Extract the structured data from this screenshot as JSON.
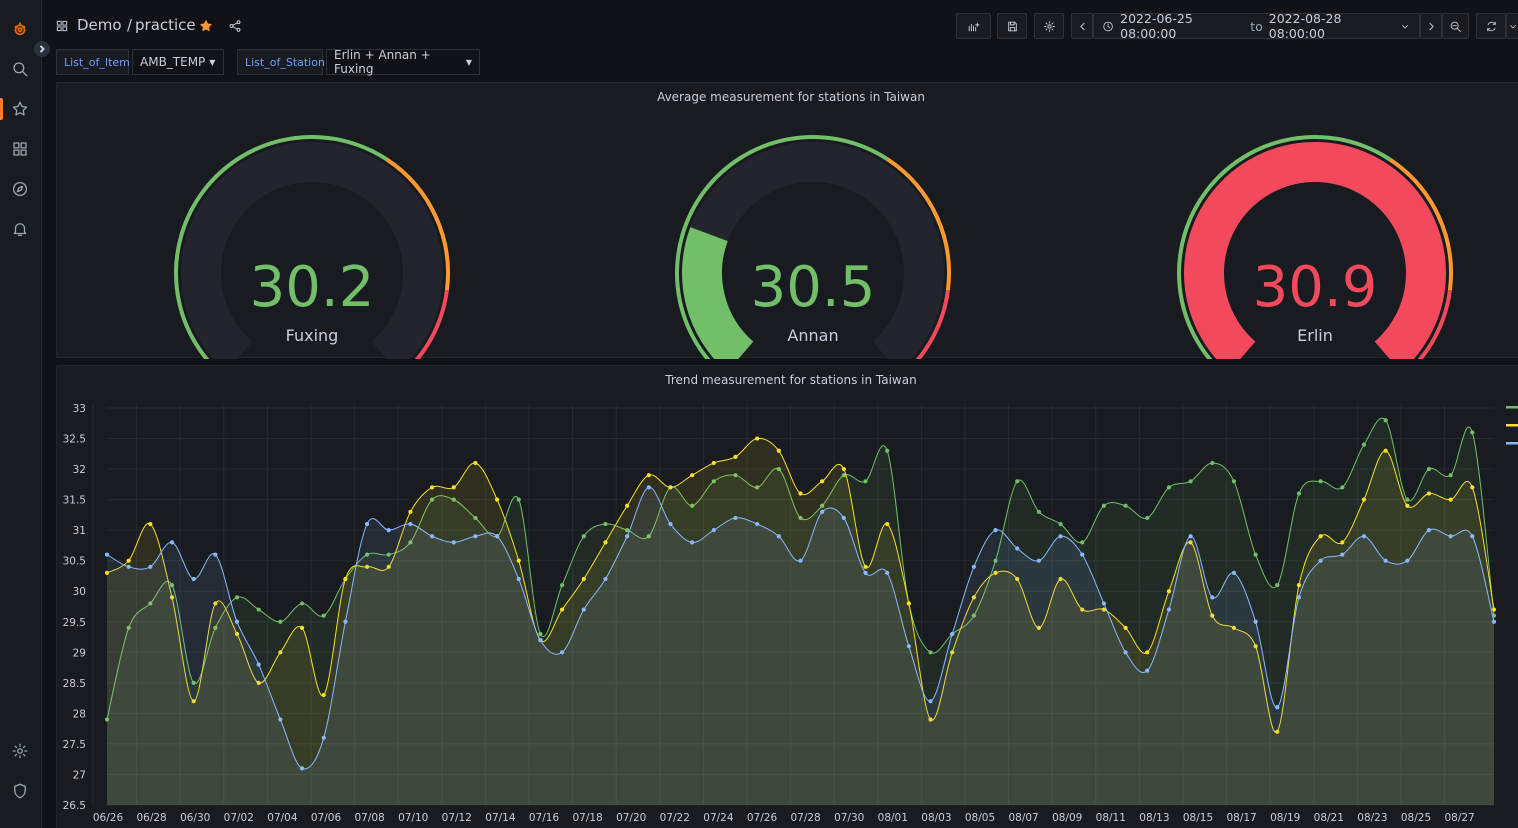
{
  "topbar": {
    "breadcrumb_folder": "Demo",
    "breadcrumb_separator": "/",
    "breadcrumb_dashboard": "practice",
    "time_from": "2022-06-25 08:00:00",
    "time_to_word": "to",
    "time_to": "2022-08-28 08:00:00"
  },
  "variables": [
    {
      "label": "List_of_Item",
      "value": "AMB_TEMP"
    },
    {
      "label": "List_of_Station",
      "value": "Erlin + Annan + Fuxing"
    }
  ],
  "gauge_panel": {
    "title": "Average measurement for stations in Taiwan",
    "gauges": [
      {
        "name": "Fuxing",
        "value": "30.2",
        "fill_fraction": 0.0,
        "color": "#73bf69"
      },
      {
        "name": "Annan",
        "value": "30.5",
        "fill_fraction": 0.25,
        "color": "#73bf69"
      },
      {
        "name": "Erlin",
        "value": "30.9",
        "fill_fraction": 1.0,
        "color": "#f2495c"
      }
    ],
    "threshold_colors": {
      "ok": "#73bf69",
      "warn": "#ff9830",
      "bad": "#f2495c"
    }
  },
  "chart_data": {
    "type": "line",
    "title": "Trend measurement for stations in Taiwan",
    "ylim": [
      26.5,
      33
    ],
    "yticks": [
      "26.5",
      "27",
      "27.5",
      "28",
      "28.5",
      "29",
      "29.5",
      "30",
      "30.5",
      "31",
      "31.5",
      "32",
      "32.5",
      "33"
    ],
    "xticks": [
      "06/26",
      "06/28",
      "06/30",
      "07/02",
      "07/04",
      "07/06",
      "07/08",
      "07/10",
      "07/12",
      "07/14",
      "07/16",
      "07/18",
      "07/20",
      "07/22",
      "07/24",
      "07/26",
      "07/28",
      "07/30",
      "08/01",
      "08/03",
      "08/05",
      "08/07",
      "08/09",
      "08/11",
      "08/13",
      "08/15",
      "08/17",
      "08/19",
      "08/21",
      "08/23",
      "08/25",
      "08/27"
    ],
    "grid": true,
    "legend_placement": "top-right",
    "series": [
      {
        "color": "#73bf69",
        "values": [
          27.9,
          29.4,
          29.8,
          30.1,
          28.5,
          29.4,
          29.9,
          29.7,
          29.5,
          29.8,
          29.6,
          30.2,
          30.6,
          30.6,
          30.8,
          31.5,
          31.5,
          31.2,
          30.9,
          31.5,
          29.3,
          30.1,
          30.9,
          31.1,
          31.0,
          30.9,
          31.7,
          31.4,
          31.8,
          31.9,
          31.7,
          32.0,
          31.2,
          31.4,
          31.9,
          31.8,
          32.3,
          29.8,
          29.0,
          29.3,
          29.6,
          30.5,
          31.8,
          31.3,
          31.1,
          30.8,
          31.4,
          31.4,
          31.2,
          31.7,
          31.8,
          32.1,
          31.8,
          30.6,
          30.1,
          31.6,
          31.8,
          31.7,
          32.4,
          32.8,
          31.5,
          32.0,
          31.9,
          32.6,
          29.6
        ]
      },
      {
        "color": "#fade2a",
        "values": [
          30.3,
          30.5,
          31.1,
          29.9,
          28.2,
          29.8,
          29.3,
          28.5,
          29.0,
          29.4,
          28.3,
          30.2,
          30.4,
          30.4,
          31.3,
          31.7,
          31.7,
          32.1,
          31.5,
          30.5,
          29.2,
          29.7,
          30.2,
          30.8,
          31.4,
          31.9,
          31.7,
          31.9,
          32.1,
          32.2,
          32.5,
          32.3,
          31.6,
          31.8,
          32.0,
          30.4,
          31.1,
          29.8,
          27.9,
          29.0,
          29.9,
          30.3,
          30.2,
          29.4,
          30.2,
          29.7,
          29.7,
          29.4,
          29.0,
          30.0,
          30.8,
          29.6,
          29.4,
          29.1,
          27.7,
          30.1,
          30.9,
          30.8,
          31.5,
          32.3,
          31.4,
          31.6,
          31.5,
          31.7,
          29.7
        ]
      },
      {
        "color": "#8ab8ff",
        "values": [
          30.6,
          30.4,
          30.4,
          30.8,
          30.2,
          30.6,
          29.5,
          28.8,
          27.9,
          27.1,
          27.6,
          29.5,
          31.1,
          31.0,
          31.1,
          30.9,
          30.8,
          30.9,
          30.9,
          30.2,
          29.2,
          29.0,
          29.7,
          30.2,
          30.9,
          31.7,
          31.1,
          30.8,
          31.0,
          31.2,
          31.1,
          30.9,
          30.5,
          31.3,
          31.2,
          30.3,
          30.3,
          29.1,
          28.2,
          29.3,
          30.4,
          31.0,
          30.7,
          30.5,
          30.9,
          30.6,
          29.8,
          29.0,
          28.7,
          29.7,
          30.9,
          29.9,
          30.3,
          29.5,
          28.1,
          29.9,
          30.5,
          30.6,
          30.9,
          30.5,
          30.5,
          31.0,
          30.9,
          30.9,
          29.5
        ]
      }
    ]
  }
}
